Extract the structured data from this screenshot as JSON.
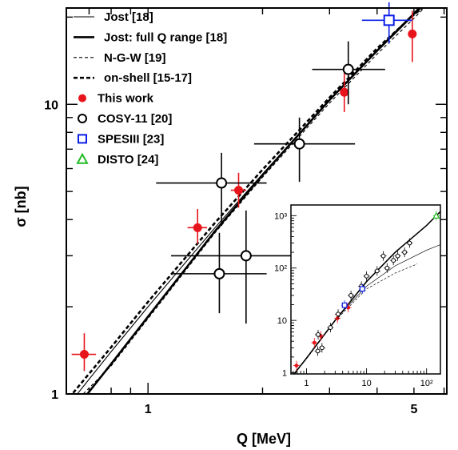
{
  "chart_data": {
    "type": "scatter",
    "xlabel": "Q [MeV]",
    "ylabel": "σ [nb]",
    "x_log": true,
    "y_log": true,
    "xlim": [
      0.61,
      6.1
    ],
    "ylim": [
      1.0,
      21.5
    ],
    "x_ticks": [
      {
        "v": 1,
        "label": "1"
      },
      {
        "v": 5,
        "label": "5"
      }
    ],
    "y_ticks": [
      {
        "v": 1,
        "label": "1"
      },
      {
        "v": 10,
        "label": "10"
      }
    ],
    "grid": false,
    "legend_position": "top-left",
    "legend": [
      {
        "label": "Jost [18]",
        "style": "line-thin-solid"
      },
      {
        "label": "Jost: full Q range [18]",
        "style": "line-thick-solid"
      },
      {
        "label": "N-G-W [19]",
        "style": "line-thin-dashed"
      },
      {
        "label": "on-shell [15-17]",
        "style": "line-thick-dashed"
      },
      {
        "label": "This work",
        "style": "marker-red-dot"
      },
      {
        "label": "COSY-11 [20]",
        "style": "marker-open-circle"
      },
      {
        "label": "SPESIII [23]",
        "style": "marker-blue-square"
      },
      {
        "label": "DISTO [24]",
        "style": "marker-green-triangle"
      }
    ],
    "series": [
      {
        "name": "This work",
        "kind": "points",
        "color": "#e8141b",
        "marker": "filled-circle",
        "points": [
          {
            "x": 0.68,
            "y": 1.37,
            "xerr": 0.05,
            "ylo": 1.2,
            "yhi": 1.62
          },
          {
            "x": 1.35,
            "y": 3.75,
            "xerr": 0.08,
            "ylo": 3.3,
            "yhi": 4.35
          },
          {
            "x": 1.73,
            "y": 5.05,
            "xerr": 0.08,
            "ylo": 4.4,
            "yhi": 5.8
          },
          {
            "x": 3.28,
            "y": 11.0,
            "xerr": 0.08,
            "ylo": 9.4,
            "yhi": 12.8
          },
          {
            "x": 4.95,
            "y": 17.5,
            "xerr": 0.06,
            "ylo": 14.0,
            "yhi": 21.0
          }
        ]
      },
      {
        "name": "COSY-11 [20]",
        "kind": "points",
        "color": "#000000",
        "marker": "open-circle",
        "points": [
          {
            "x": 1.54,
            "y": 2.6,
            "xlo": 1.15,
            "xhi": 2.05,
            "ylo": 1.9,
            "yhi": 3.6
          },
          {
            "x": 1.56,
            "y": 5.35,
            "xlo": 1.05,
            "xhi": 2.05,
            "ylo": 3.8,
            "yhi": 6.8
          },
          {
            "x": 1.81,
            "y": 3.0,
            "xlo": 1.15,
            "xhi": 2.8,
            "ylo": 1.75,
            "yhi": 4.3
          },
          {
            "x": 2.5,
            "y": 7.3,
            "xlo": 1.9,
            "xhi": 3.5,
            "ylo": 5.4,
            "yhi": 9.0
          },
          {
            "x": 3.36,
            "y": 13.2,
            "xlo": 2.7,
            "xhi": 4.2,
            "ylo": 10.0,
            "yhi": 16.5
          }
        ]
      },
      {
        "name": "SPESIII [23]",
        "kind": "points",
        "color": "#0a1ee8",
        "marker": "open-square",
        "points": [
          {
            "x": 4.3,
            "y": 19.5,
            "xlo": 3.65,
            "xhi": 4.95,
            "ylo": 16.2,
            "yhi": 22.5
          }
        ]
      },
      {
        "name": "Jost [18]",
        "kind": "line",
        "style": "thin-solid",
        "points": [
          [
            0.64,
            0.97
          ],
          [
            0.8,
            1.4
          ],
          [
            1.0,
            2.0
          ],
          [
            1.5,
            3.75
          ],
          [
            2.0,
            5.75
          ],
          [
            3.0,
            10.3
          ],
          [
            4.0,
            15.4
          ],
          [
            5.0,
            20.7
          ],
          [
            5.3,
            22.5
          ]
        ]
      },
      {
        "name": "Jost: full Q range [18]",
        "kind": "line",
        "style": "thick-solid",
        "points": [
          [
            0.68,
            0.97
          ],
          [
            0.8,
            1.27
          ],
          [
            1.0,
            1.85
          ],
          [
            1.5,
            3.65
          ],
          [
            2.0,
            5.7
          ],
          [
            3.0,
            10.35
          ],
          [
            4.0,
            15.3
          ],
          [
            5.0,
            20.5
          ],
          [
            5.4,
            22.5
          ]
        ]
      },
      {
        "name": "N-G-W [19]",
        "kind": "line",
        "style": "thin-dashed",
        "points": [
          [
            0.66,
            0.97
          ],
          [
            0.8,
            1.25
          ],
          [
            1.0,
            1.82
          ],
          [
            1.5,
            3.6
          ],
          [
            2.0,
            5.6
          ],
          [
            3.0,
            10.1
          ],
          [
            4.0,
            14.9
          ],
          [
            5.0,
            19.8
          ],
          [
            5.5,
            22.5
          ]
        ]
      },
      {
        "name": "on-shell [15-17]",
        "kind": "line",
        "style": "thick-dashed",
        "points": [
          [
            0.62,
            0.97
          ],
          [
            0.8,
            1.45
          ],
          [
            1.0,
            2.08
          ],
          [
            1.5,
            3.9
          ],
          [
            2.0,
            5.95
          ],
          [
            3.0,
            10.55
          ],
          [
            4.0,
            15.6
          ],
          [
            5.0,
            20.4
          ],
          [
            5.5,
            22.5
          ]
        ]
      }
    ],
    "inset": {
      "type": "scatter",
      "x_log": true,
      "y_log": true,
      "xlim": [
        0.55,
        170
      ],
      "ylim": [
        0.95,
        1600
      ],
      "x_ticks": [
        {
          "v": 1,
          "label": "1"
        },
        {
          "v": 10,
          "label": "10"
        },
        {
          "v": 100,
          "label": "10²"
        }
      ],
      "y_ticks": [
        {
          "v": 1,
          "label": "1"
        },
        {
          "v": 10,
          "label": "10"
        },
        {
          "v": 100,
          "label": "10²"
        },
        {
          "v": 1000,
          "label": "10³"
        }
      ],
      "series": [
        {
          "name": "This work",
          "color": "#e8141b",
          "marker": "filled-circle",
          "points": [
            [
              0.68,
              1.37
            ],
            [
              1.35,
              3.75
            ],
            [
              1.73,
              5.05
            ],
            [
              3.28,
              11.0
            ],
            [
              4.95,
              17.5
            ]
          ]
        },
        {
          "name": "COSY-11 [20]",
          "color": "#000000",
          "marker": "open-circle",
          "points": [
            [
              1.54,
              2.6
            ],
            [
              1.56,
              5.35
            ],
            [
              1.81,
              3.0
            ],
            [
              2.5,
              7.3
            ],
            [
              3.36,
              13.2
            ],
            [
              5.5,
              30
            ],
            [
              8.2,
              45
            ],
            [
              10.0,
              70
            ],
            [
              15.0,
              88
            ],
            [
              19.0,
              170
            ],
            [
              22.0,
              100
            ],
            [
              28.0,
              140
            ],
            [
              33.0,
              170
            ],
            [
              43.0,
              200
            ],
            [
              52.0,
              300
            ]
          ]
        },
        {
          "name": "SPESIII [23]",
          "color": "#0a1ee8",
          "marker": "open-square",
          "points": [
            [
              4.3,
              19.5
            ],
            [
              8.5,
              40
            ]
          ]
        },
        {
          "name": "DISTO [24]",
          "color": "#22bb22",
          "marker": "open-triangle",
          "points": [
            [
              145,
              1000
            ]
          ]
        }
      ],
      "curves": [
        {
          "name": "Jost: full Q range [18]",
          "style": "thick-solid",
          "points": [
            [
              0.62,
              0.95
            ],
            [
              1,
              1.9
            ],
            [
              3,
              10
            ],
            [
              10,
              55
            ],
            [
              30,
              200
            ],
            [
              100,
              650
            ],
            [
              170,
              1200
            ]
          ]
        },
        {
          "name": "Jost [18]",
          "style": "thin-solid",
          "points": [
            [
              0.62,
              0.95
            ],
            [
              1,
              1.95
            ],
            [
              3,
              10.2
            ],
            [
              10,
              45
            ],
            [
              30,
              110
            ],
            [
              100,
              220
            ],
            [
              170,
              280
            ]
          ]
        },
        {
          "name": "N-G-W [19]",
          "style": "thin-dashed",
          "points": [
            [
              0.62,
              0.95
            ],
            [
              1,
              1.85
            ],
            [
              3,
              9.8
            ],
            [
              10,
              40
            ],
            [
              30,
              80
            ],
            [
              70,
              120
            ]
          ]
        }
      ]
    }
  }
}
